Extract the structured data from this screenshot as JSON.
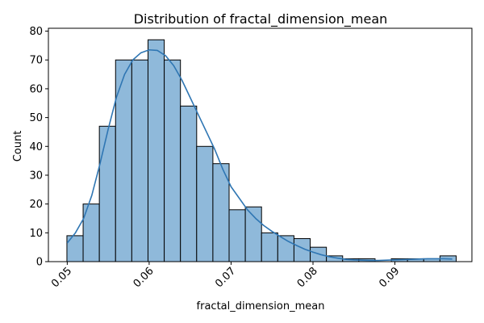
{
  "chart_data": {
    "type": "histogram",
    "title": "Distribution of fractal_dimension_mean",
    "xlabel": "fractal_dimension_mean",
    "ylabel": "Count",
    "xlim": [
      0.0477,
      0.0994
    ],
    "ylim": [
      0,
      81
    ],
    "xticks": [
      0.05,
      0.06,
      0.07,
      0.08,
      0.09
    ],
    "xtick_labels": [
      "0.05",
      "0.06",
      "0.07",
      "0.08",
      "0.09"
    ],
    "yticks": [
      0,
      10,
      20,
      30,
      40,
      50,
      60,
      70,
      80
    ],
    "ytick_labels": [
      "0",
      "10",
      "20",
      "30",
      "40",
      "50",
      "60",
      "70",
      "80"
    ],
    "bin_start": 0.04996,
    "bin_width": 0.00198,
    "counts": [
      9,
      20,
      47,
      70,
      70,
      77,
      70,
      54,
      40,
      34,
      18,
      19,
      10,
      9,
      8,
      5,
      2,
      1,
      1,
      0,
      1,
      1,
      1,
      2
    ],
    "kde": {
      "x": [
        0.05,
        0.051,
        0.052,
        0.053,
        0.054,
        0.055,
        0.056,
        0.057,
        0.058,
        0.059,
        0.06,
        0.061,
        0.062,
        0.063,
        0.064,
        0.065,
        0.066,
        0.067,
        0.068,
        0.069,
        0.07,
        0.071,
        0.072,
        0.073,
        0.074,
        0.075,
        0.076,
        0.077,
        0.078,
        0.079,
        0.08,
        0.081,
        0.082,
        0.083,
        0.084,
        0.085,
        0.086,
        0.087,
        0.088,
        0.089,
        0.09,
        0.091,
        0.092,
        0.093,
        0.094,
        0.095,
        0.096,
        0.097
      ],
      "y": [
        6.5,
        10,
        15,
        23,
        34,
        46,
        57,
        65,
        70,
        72.5,
        73.5,
        73.3,
        71.5,
        68,
        63,
        57,
        51,
        45,
        39,
        32,
        26,
        22,
        18,
        15,
        12.5,
        10.5,
        8.7,
        7,
        5.6,
        4.3,
        3.3,
        2.4,
        1.7,
        1.2,
        0.8,
        0.6,
        0.5,
        0.4,
        0.4,
        0.5,
        0.6,
        0.7,
        0.8,
        0.9,
        1.0,
        1.0,
        1.0,
        0.9
      ]
    },
    "colors": {
      "bar_fill": "#8fb9da",
      "bar_edge": "#000000",
      "kde_line": "#2f76b3"
    },
    "grid": false,
    "legend": "none"
  }
}
